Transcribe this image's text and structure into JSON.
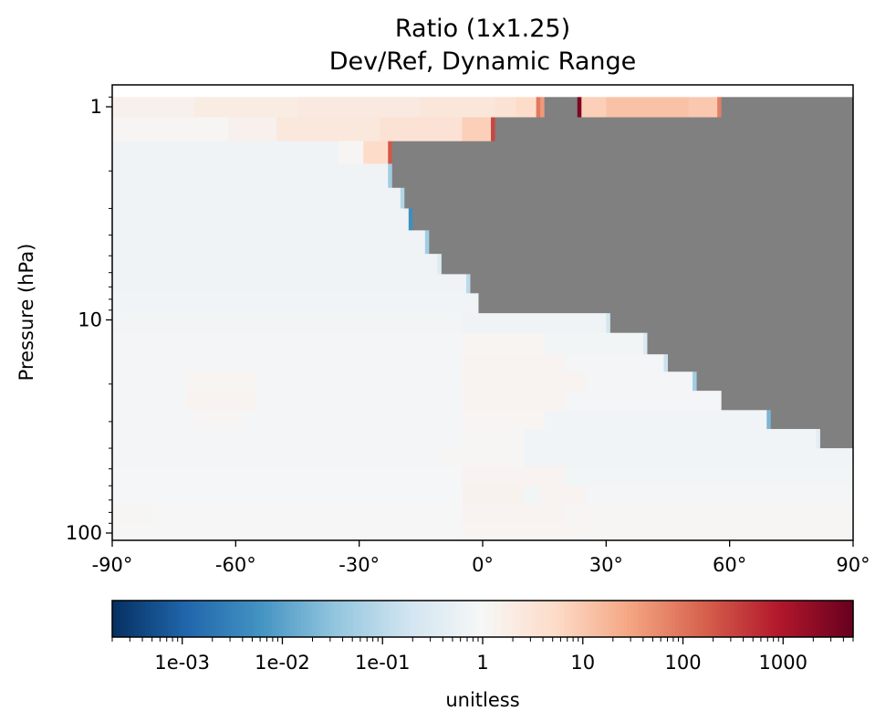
{
  "chart_data": {
    "type": "heatmap",
    "title": "Ratio (1x1.25)",
    "subtitle": "Dev/Ref, Dynamic Range",
    "xlabel": "",
    "ylabel": "Pressure (hPa)",
    "x_range": [
      -90,
      90
    ],
    "y_range": [
      100,
      1
    ],
    "y_scale": "log",
    "y_inverted": true,
    "x_ticks": [
      {
        "value": -90,
        "label": "-90°"
      },
      {
        "value": -60,
        "label": "-60°"
      },
      {
        "value": -30,
        "label": "-30°"
      },
      {
        "value": 0,
        "label": "0°"
      },
      {
        "value": 30,
        "label": "30°"
      },
      {
        "value": 60,
        "label": "60°"
      },
      {
        "value": 90,
        "label": "90°"
      }
    ],
    "y_ticks": [
      {
        "value": 1,
        "label": "1"
      },
      {
        "value": 10,
        "label": "10"
      },
      {
        "value": 100,
        "label": "100"
      }
    ],
    "masked_color": "#808080",
    "colormap": "RdBu_r",
    "colorbar": {
      "label": "unitless",
      "scale": "log",
      "range": [
        0.0002,
        5000
      ],
      "ticks": [
        {
          "value": 0.001,
          "label": "1e-03"
        },
        {
          "value": 0.01,
          "label": "1e-02"
        },
        {
          "value": 0.1,
          "label": "1e-01"
        },
        {
          "value": 1,
          "label": "1"
        },
        {
          "value": 10,
          "label": "10"
        },
        {
          "value": 100,
          "label": "100"
        },
        {
          "value": 1000,
          "label": "1000"
        }
      ]
    },
    "rows": [
      {
        "p_top": 0.9,
        "p_bottom": 1.12,
        "segments": [
          {
            "x0": -90,
            "x1": -70,
            "v": 1.5
          },
          {
            "x0": -70,
            "x1": -45,
            "v": 2.0
          },
          {
            "x0": -45,
            "x1": -15,
            "v": 2.3
          },
          {
            "x0": -15,
            "x1": 3,
            "v": 2.8
          },
          {
            "x0": 3,
            "x1": 8,
            "v": 3.5
          },
          {
            "x0": 8,
            "x1": 13,
            "v": 5
          },
          {
            "x0": 13,
            "x1": 14,
            "v": 90
          },
          {
            "x0": 14,
            "x1": 15,
            "v": 40
          },
          {
            "x0": 15,
            "x1": 23,
            "v": null
          },
          {
            "x0": 23,
            "x1": 24,
            "v": 3000
          },
          {
            "x0": 24,
            "x1": 30,
            "v": 8
          },
          {
            "x0": 30,
            "x1": 50,
            "v": 12
          },
          {
            "x0": 50,
            "x1": 57,
            "v": 10
          },
          {
            "x0": 57,
            "x1": 58,
            "v": 80
          },
          {
            "x0": 58,
            "x1": 90,
            "v": null
          }
        ]
      },
      {
        "p_top": 1.12,
        "p_bottom": 1.45,
        "segments": [
          {
            "x0": -90,
            "x1": -62,
            "v": 1.1
          },
          {
            "x0": -62,
            "x1": -50,
            "v": 1.5
          },
          {
            "x0": -50,
            "x1": -25,
            "v": 2.5
          },
          {
            "x0": -25,
            "x1": -5,
            "v": 3.5
          },
          {
            "x0": -5,
            "x1": 2,
            "v": 8
          },
          {
            "x0": 2,
            "x1": 3,
            "v": 300
          },
          {
            "x0": 3,
            "x1": 90,
            "v": null
          }
        ]
      },
      {
        "p_top": 1.45,
        "p_bottom": 1.85,
        "segments": [
          {
            "x0": -90,
            "x1": -35,
            "v": 0.7
          },
          {
            "x0": -35,
            "x1": -29,
            "v": 1.1
          },
          {
            "x0": -29,
            "x1": -23,
            "v": 5
          },
          {
            "x0": -23,
            "x1": -22,
            "v": 200
          },
          {
            "x0": -22,
            "x1": 90,
            "v": null
          }
        ]
      },
      {
        "p_top": 1.85,
        "p_bottom": 2.4,
        "segments": [
          {
            "x0": -90,
            "x1": -23,
            "v": 0.7
          },
          {
            "x0": -23,
            "x1": -22,
            "v": 0.05
          },
          {
            "x0": -22,
            "x1": 90,
            "v": null
          }
        ]
      },
      {
        "p_top": 2.4,
        "p_bottom": 3.0,
        "segments": [
          {
            "x0": -90,
            "x1": -20,
            "v": 0.7
          },
          {
            "x0": -20,
            "x1": -19,
            "v": 0.08
          },
          {
            "x0": -19,
            "x1": 90,
            "v": null
          }
        ]
      },
      {
        "p_top": 3.0,
        "p_bottom": 3.8,
        "segments": [
          {
            "x0": -90,
            "x1": -18,
            "v": 0.7
          },
          {
            "x0": -18,
            "x1": -17,
            "v": 0.005
          },
          {
            "x0": -17,
            "x1": 90,
            "v": null
          }
        ]
      },
      {
        "p_top": 3.8,
        "p_bottom": 4.9,
        "segments": [
          {
            "x0": -90,
            "x1": -14,
            "v": 0.7
          },
          {
            "x0": -14,
            "x1": -13,
            "v": 0.05
          },
          {
            "x0": -13,
            "x1": 90,
            "v": null
          }
        ]
      },
      {
        "p_top": 4.9,
        "p_bottom": 6.1,
        "segments": [
          {
            "x0": -90,
            "x1": -11,
            "v": 0.7
          },
          {
            "x0": -11,
            "x1": -10,
            "v": 0.3
          },
          {
            "x0": -10,
            "x1": 90,
            "v": null
          }
        ]
      },
      {
        "p_top": 6.1,
        "p_bottom": 7.5,
        "segments": [
          {
            "x0": -90,
            "x1": -4,
            "v": 0.7
          },
          {
            "x0": -4,
            "x1": -3,
            "v": 0.1
          },
          {
            "x0": -3,
            "x1": 90,
            "v": null
          }
        ]
      },
      {
        "p_top": 7.5,
        "p_bottom": 9.3,
        "segments": [
          {
            "x0": -90,
            "x1": -1,
            "v": 0.75
          },
          {
            "x0": -1,
            "x1": 90,
            "v": null
          }
        ]
      },
      {
        "p_top": 9.3,
        "p_bottom": 11.5,
        "segments": [
          {
            "x0": -90,
            "x1": -5,
            "v": 0.8
          },
          {
            "x0": -5,
            "x1": 30,
            "v": 0.7
          },
          {
            "x0": 30,
            "x1": 31,
            "v": 0.2
          },
          {
            "x0": 31,
            "x1": 90,
            "v": null
          }
        ]
      },
      {
        "p_top": 11.5,
        "p_bottom": 14.5,
        "segments": [
          {
            "x0": -90,
            "x1": -5,
            "v": 0.85
          },
          {
            "x0": -5,
            "x1": 15,
            "v": 1.2
          },
          {
            "x0": 15,
            "x1": 39,
            "v": 0.8
          },
          {
            "x0": 39,
            "x1": 40,
            "v": 0.3
          },
          {
            "x0": 40,
            "x1": 90,
            "v": null
          }
        ]
      },
      {
        "p_top": 14.5,
        "p_bottom": 17.5,
        "segments": [
          {
            "x0": -90,
            "x1": -5,
            "v": 0.85
          },
          {
            "x0": -5,
            "x1": 20,
            "v": 1.3
          },
          {
            "x0": 20,
            "x1": 44,
            "v": 0.85
          },
          {
            "x0": 44,
            "x1": 45,
            "v": 0.15
          },
          {
            "x0": 45,
            "x1": 90,
            "v": null
          }
        ]
      },
      {
        "p_top": 17.5,
        "p_bottom": 21.5,
        "segments": [
          {
            "x0": -90,
            "x1": -72,
            "v": 0.85
          },
          {
            "x0": -72,
            "x1": -55,
            "v": 1.2
          },
          {
            "x0": -55,
            "x1": -5,
            "v": 0.85
          },
          {
            "x0": -5,
            "x1": 25,
            "v": 1.3
          },
          {
            "x0": 25,
            "x1": 51,
            "v": 0.85
          },
          {
            "x0": 51,
            "x1": 52,
            "v": 0.05
          },
          {
            "x0": 52,
            "x1": 90,
            "v": null
          }
        ]
      },
      {
        "p_top": 21.5,
        "p_bottom": 26.5,
        "segments": [
          {
            "x0": -90,
            "x1": -72,
            "v": 0.85
          },
          {
            "x0": -72,
            "x1": -55,
            "v": 1.25
          },
          {
            "x0": -55,
            "x1": -5,
            "v": 0.85
          },
          {
            "x0": -5,
            "x1": 20,
            "v": 1.25
          },
          {
            "x0": 20,
            "x1": 58,
            "v": 0.85
          },
          {
            "x0": 58,
            "x1": 90,
            "v": null
          }
        ]
      },
      {
        "p_top": 26.5,
        "p_bottom": 32.5,
        "segments": [
          {
            "x0": -90,
            "x1": -70,
            "v": 0.85
          },
          {
            "x0": -70,
            "x1": -58,
            "v": 1.15
          },
          {
            "x0": -58,
            "x1": -5,
            "v": 0.85
          },
          {
            "x0": -5,
            "x1": 15,
            "v": 1.2
          },
          {
            "x0": 15,
            "x1": 69,
            "v": 0.75
          },
          {
            "x0": 69,
            "x1": 70,
            "v": 0.02
          },
          {
            "x0": 70,
            "x1": 90,
            "v": null
          }
        ]
      },
      {
        "p_top": 32.5,
        "p_bottom": 40,
        "segments": [
          {
            "x0": -90,
            "x1": -5,
            "v": 0.85
          },
          {
            "x0": -5,
            "x1": 10,
            "v": 1.15
          },
          {
            "x0": 10,
            "x1": 81,
            "v": 0.75
          },
          {
            "x0": 81,
            "x1": 82,
            "v": 0.4
          },
          {
            "x0": 82,
            "x1": 90,
            "v": null
          }
        ]
      },
      {
        "p_top": 40,
        "p_bottom": 49,
        "segments": [
          {
            "x0": -90,
            "x1": -10,
            "v": 0.85
          },
          {
            "x0": -10,
            "x1": 10,
            "v": 1.1
          },
          {
            "x0": 10,
            "x1": 90,
            "v": 0.75
          }
        ]
      },
      {
        "p_top": 49,
        "p_bottom": 60,
        "segments": [
          {
            "x0": -90,
            "x1": -5,
            "v": 0.9
          },
          {
            "x0": -5,
            "x1": 20,
            "v": 1.3
          },
          {
            "x0": 20,
            "x1": 90,
            "v": 0.8
          }
        ]
      },
      {
        "p_top": 60,
        "p_bottom": 73,
        "segments": [
          {
            "x0": -90,
            "x1": -5,
            "v": 0.92
          },
          {
            "x0": -5,
            "x1": 10,
            "v": 1.35
          },
          {
            "x0": 10,
            "x1": 14,
            "v": 0.8
          },
          {
            "x0": 14,
            "x1": 25,
            "v": 1.3
          },
          {
            "x0": 25,
            "x1": 90,
            "v": 0.85
          }
        ]
      },
      {
        "p_top": 73,
        "p_bottom": 89,
        "segments": [
          {
            "x0": -90,
            "x1": -80,
            "v": 1.1
          },
          {
            "x0": -80,
            "x1": -5,
            "v": 0.95
          },
          {
            "x0": -5,
            "x1": 20,
            "v": 1.3
          },
          {
            "x0": 20,
            "x1": 90,
            "v": 1.1
          }
        ]
      },
      {
        "p_top": 89,
        "p_bottom": 110,
        "segments": [
          {
            "x0": -90,
            "x1": -5,
            "v": 1.05
          },
          {
            "x0": -5,
            "x1": 25,
            "v": 1.2
          },
          {
            "x0": 25,
            "x1": 90,
            "v": 1.15
          }
        ]
      }
    ]
  }
}
